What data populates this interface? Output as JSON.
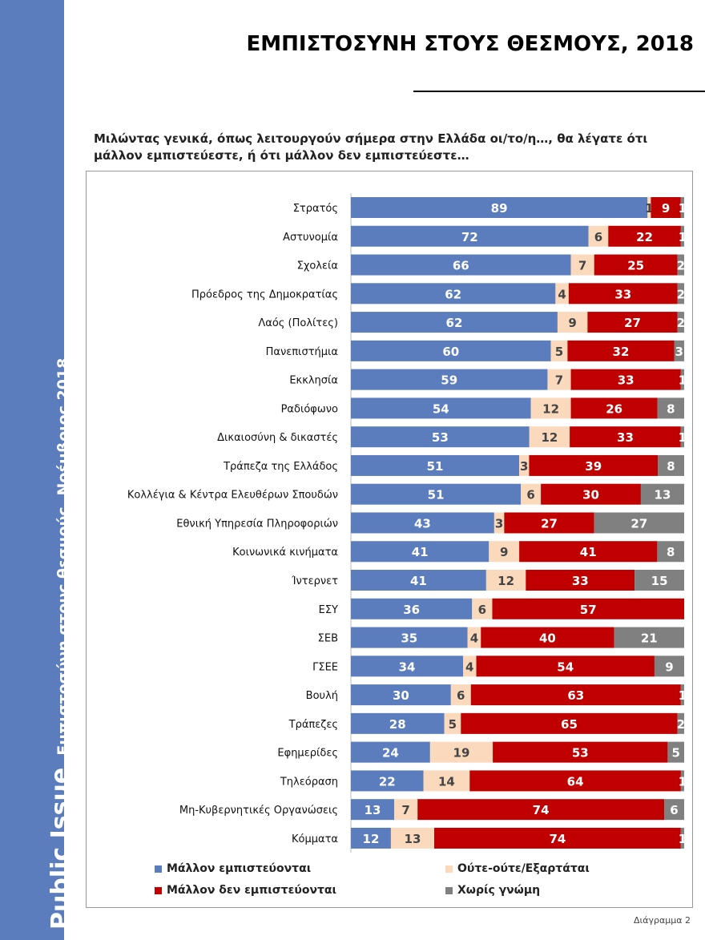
{
  "sidebar": {
    "brand": "Public Issue",
    "subtitle": "Εμπιστοσύνη στους θεσμούς, Νοέμβριος 2018"
  },
  "header": {
    "title": "ΕΜΠΙΣΤΟΣΥΝΗ ΣΤΟΥΣ ΘΕΣΜΟΥΣ, 2018"
  },
  "question": "Μιλώντας γενικά, όπως λειτουργούν σήμερα στην Ελλάδα οι/το/η…, θα λέγατε ότι μάλλον εμπιστεύεστε, ή ότι μάλλον δεν εμπιστεύεστε…",
  "footer": "Διάγραμμα 2",
  "chart_data": {
    "type": "bar",
    "orientation": "horizontal",
    "stacked": true,
    "xlim": [
      0,
      100
    ],
    "legend_placement": "bottom",
    "categories": [
      "Στρατός",
      "Αστυνομία",
      "Σχολεία",
      "Πρόεδρος της Δημοκρατίας",
      "Λαός (Πολίτες)",
      "Πανεπιστήμια",
      "Εκκλησία",
      "Ραδιόφωνο",
      "Δικαιοσύνη & δικαστές",
      "Τράπεζα της Ελλάδος",
      "Κολλέγια & Κέντρα Ελευθέρων Σπουδών",
      "Εθνική Υπηρεσία Πληροφοριών",
      "Κοινωνικά κινήματα",
      "Ίντερνετ",
      "ΕΣΥ",
      "ΣΕΒ",
      "ΓΣΕΕ",
      "Βουλή",
      "Τράπεζες",
      "Εφημερίδες",
      "Τηλεόραση",
      "Μη-Κυβερνητικές Οργανώσεις",
      "Κόμματα"
    ],
    "series": [
      {
        "name": "Μάλλον εμπιστεύονται",
        "color": "#5b7dbd",
        "values": [
          89,
          72,
          66,
          62,
          62,
          60,
          59,
          54,
          53,
          51,
          51,
          43,
          41,
          41,
          36,
          35,
          34,
          30,
          28,
          24,
          22,
          13,
          12
        ]
      },
      {
        "name": "Ούτε-ούτε/Εξαρτάται",
        "color": "#fbd9bd",
        "values": [
          1,
          6,
          7,
          4,
          9,
          5,
          7,
          12,
          12,
          3,
          6,
          3,
          9,
          12,
          6,
          4,
          4,
          6,
          5,
          19,
          14,
          7,
          13
        ]
      },
      {
        "name": "Μάλλον δεν εμπιστεύονται",
        "color": "#c00000",
        "values": [
          9,
          22,
          25,
          33,
          27,
          32,
          33,
          26,
          33,
          39,
          30,
          27,
          41,
          33,
          57,
          40,
          54,
          63,
          65,
          53,
          64,
          74,
          74
        ]
      },
      {
        "name": "Χωρίς γνώμη",
        "color": "#808080",
        "values": [
          1,
          1,
          2,
          2,
          2,
          3,
          1,
          8,
          1,
          8,
          13,
          27,
          8,
          15,
          0,
          21,
          9,
          1,
          2,
          5,
          1,
          6,
          1
        ]
      }
    ]
  }
}
